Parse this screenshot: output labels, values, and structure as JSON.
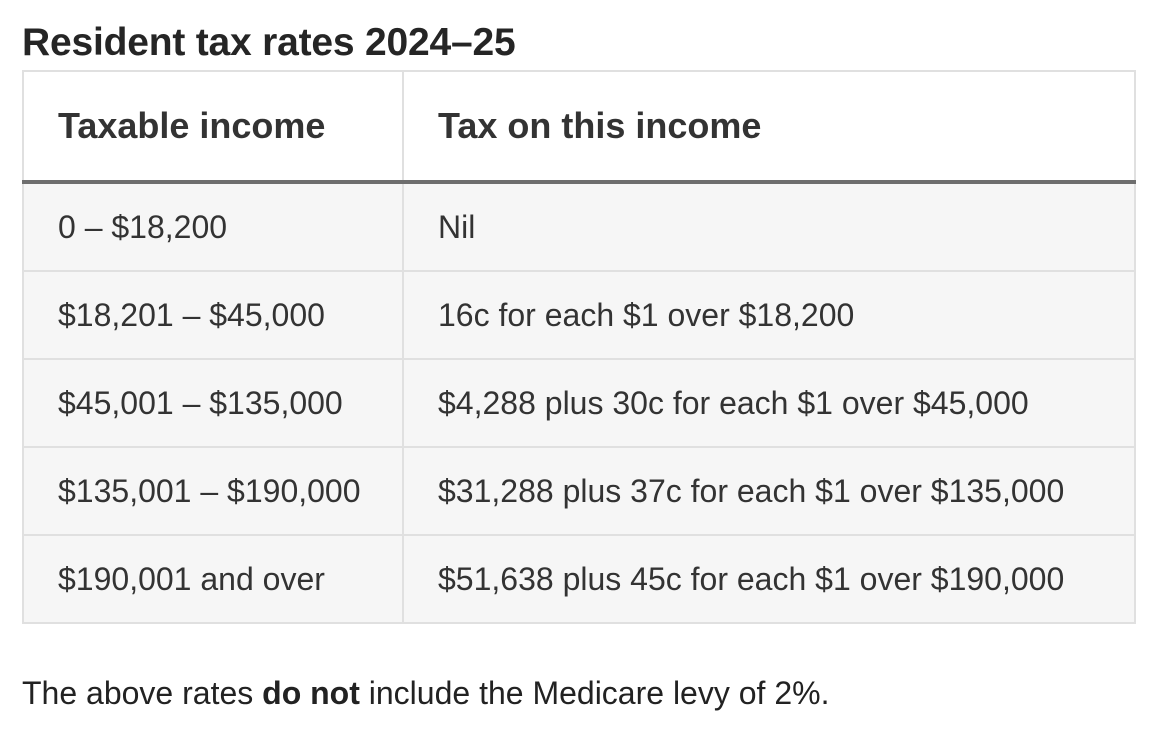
{
  "title": "Resident tax rates 2024–25",
  "table": {
    "headers": [
      "Taxable income",
      "Tax on this income"
    ],
    "rows": [
      [
        "0 – $18,200",
        "Nil"
      ],
      [
        "$18,201 – $45,000",
        "16c for each $1 over $18,200"
      ],
      [
        "$45,001 – $135,000",
        "$4,288 plus 30c for each $1 over $45,000"
      ],
      [
        "$135,001 – $190,000",
        "$31,288 plus 37c for each $1 over $135,000"
      ],
      [
        "$190,001 and over",
        "$51,638 plus 45c for each $1 over $190,000"
      ]
    ]
  },
  "note": {
    "prefix": "The above rates ",
    "emphasis": "do not",
    "suffix": " include the Medicare levy of 2%."
  }
}
